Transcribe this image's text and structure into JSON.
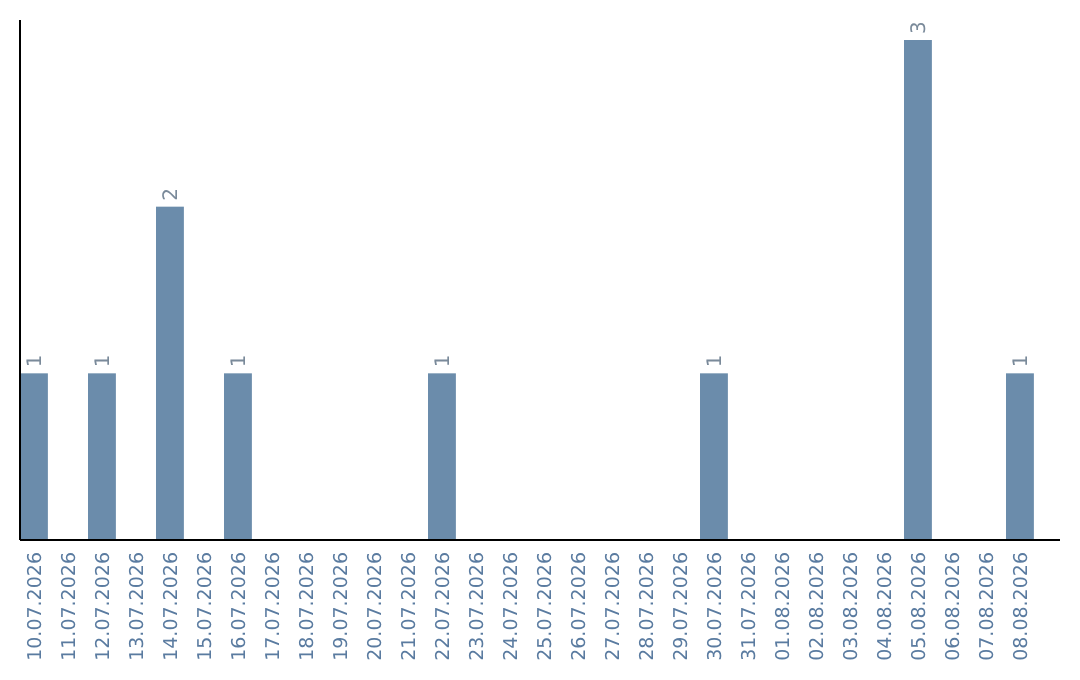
{
  "chart_data": {
    "type": "bar",
    "categories": [
      "10.07.2026",
      "11.07.2026",
      "12.07.2026",
      "13.07.2026",
      "14.07.2026",
      "15.07.2026",
      "16.07.2026",
      "17.07.2026",
      "18.07.2026",
      "19.07.2026",
      "20.07.2026",
      "21.07.2026",
      "22.07.2026",
      "23.07.2026",
      "24.07.2026",
      "25.07.2026",
      "26.07.2026",
      "27.07.2026",
      "28.07.2026",
      "29.07.2026",
      "30.07.2026",
      "31.07.2026",
      "01.08.2026",
      "02.08.2026",
      "03.08.2026",
      "04.08.2026",
      "05.08.2026",
      "06.08.2026",
      "07.08.2026",
      "08.08.2026"
    ],
    "values": [
      1,
      0,
      1,
      0,
      2,
      0,
      1,
      0,
      0,
      0,
      0,
      0,
      1,
      0,
      0,
      0,
      0,
      0,
      0,
      0,
      1,
      0,
      0,
      0,
      0,
      0,
      3,
      0,
      0,
      1
    ],
    "value_labels": [
      "1",
      null,
      "1",
      null,
      "2",
      null,
      "1",
      null,
      null,
      null,
      null,
      null,
      "1",
      null,
      null,
      null,
      null,
      null,
      null,
      null,
      "1",
      null,
      null,
      null,
      null,
      null,
      "3",
      null,
      null,
      "1"
    ],
    "color": "#6b8cab",
    "ylim": [
      0,
      3
    ],
    "tick_labels": "x"
  }
}
